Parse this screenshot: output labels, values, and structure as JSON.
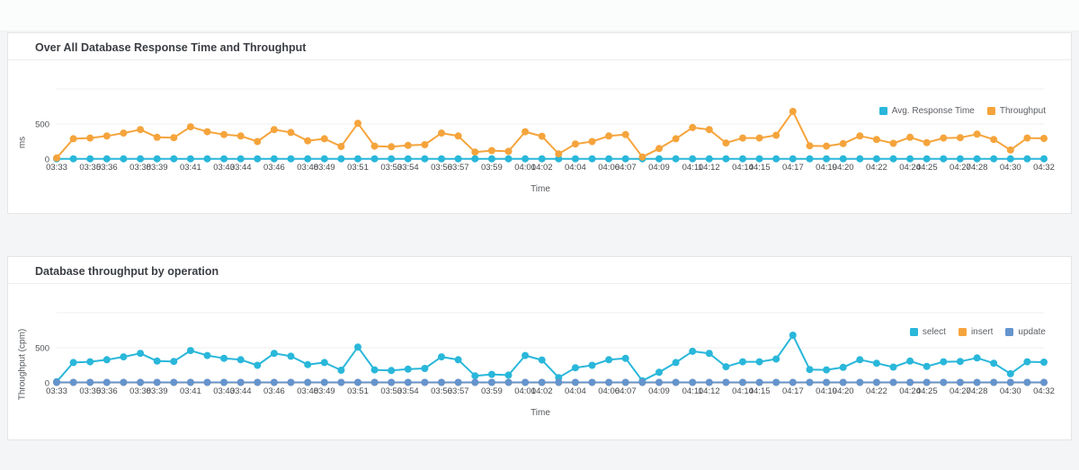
{
  "panels": [
    {
      "title": "Over All Database Response Time and Throughput",
      "y_unit": "ms",
      "x_title": "Time"
    },
    {
      "title": "Database throughput by operation",
      "y_unit": "Throughput (cpm)",
      "x_title": "Time"
    }
  ],
  "colors": {
    "cyan": "#29b7da",
    "orange": "#f5a43c",
    "steel_blue": "#6494ce",
    "panel_bg": "#ffffff",
    "page_bg": "#f4f5f6",
    "grid": "#efefef",
    "axis_text": "#46494d"
  },
  "chart_data": [
    {
      "type": "line",
      "title": "Over All Database Response Time and Throughput",
      "xlabel": "Time",
      "ylabel": "ms",
      "yticks": [
        0,
        500
      ],
      "ylim": [
        0,
        750
      ],
      "grid": "horizontal",
      "legend_position": "top-right",
      "n_points": 60,
      "x_start": "03:33",
      "x_end": "04:32",
      "x_step_minutes": 1,
      "x_tick_labels": [
        "03:33",
        "03:35",
        "03:36",
        "03:38",
        "03:39",
        "03:41",
        "03:43",
        "03:44",
        "03:46",
        "03:48",
        "03:49",
        "03:51",
        "03:53",
        "03:54",
        "03:56",
        "03:57",
        "03:59",
        "04:01",
        "04:02",
        "04:04",
        "04:06",
        "04:07",
        "04:09",
        "04:11",
        "04:12",
        "04:14",
        "04:15",
        "04:17",
        "04:19",
        "04:20",
        "04:22",
        "04:24",
        "04:25",
        "04:27",
        "04:28",
        "04:30",
        "04:32"
      ],
      "x_tick_indices": [
        0,
        2,
        3,
        5,
        6,
        8,
        10,
        11,
        13,
        15,
        16,
        18,
        20,
        21,
        23,
        24,
        26,
        28,
        29,
        31,
        33,
        34,
        36,
        38,
        39,
        41,
        42,
        44,
        46,
        47,
        49,
        51,
        52,
        54,
        55,
        57,
        59
      ],
      "series": [
        {
          "name": "Avg. Response Time",
          "color": "#29b7da",
          "values": [
            4,
            4,
            4,
            4,
            4,
            4,
            4,
            4,
            4,
            4,
            4,
            4,
            4,
            4,
            4,
            4,
            4,
            4,
            4,
            4,
            4,
            4,
            4,
            4,
            4,
            4,
            4,
            4,
            4,
            4,
            4,
            4,
            4,
            4,
            4,
            4,
            4,
            4,
            4,
            4,
            4,
            4,
            4,
            4,
            4,
            4,
            4,
            4,
            4,
            4,
            4,
            4,
            4,
            4,
            4,
            4,
            4,
            4,
            4,
            4
          ]
        },
        {
          "name": "Throughput",
          "color": "#f5a43c",
          "values": [
            15,
            290,
            300,
            330,
            370,
            420,
            310,
            305,
            460,
            390,
            350,
            330,
            250,
            420,
            380,
            260,
            290,
            180,
            510,
            185,
            175,
            195,
            205,
            370,
            330,
            100,
            120,
            110,
            390,
            325,
            75,
            215,
            250,
            330,
            350,
            30,
            150,
            290,
            450,
            420,
            230,
            300,
            300,
            340,
            680,
            190,
            185,
            220,
            330,
            280,
            225,
            310,
            235,
            300,
            305,
            355,
            280,
            130,
            300,
            295
          ]
        }
      ]
    },
    {
      "type": "line",
      "title": "Database throughput by operation",
      "xlabel": "Time",
      "ylabel": "Throughput (cpm)",
      "yticks": [
        0,
        500
      ],
      "ylim": [
        0,
        750
      ],
      "grid": "horizontal",
      "legend_position": "top-right",
      "n_points": 60,
      "x_start": "03:33",
      "x_end": "04:32",
      "x_step_minutes": 1,
      "x_tick_labels": [
        "03:33",
        "03:35",
        "03:36",
        "03:38",
        "03:39",
        "03:41",
        "03:43",
        "03:44",
        "03:46",
        "03:48",
        "03:49",
        "03:51",
        "03:53",
        "03:54",
        "03:56",
        "03:57",
        "03:59",
        "04:01",
        "04:02",
        "04:04",
        "04:06",
        "04:07",
        "04:09",
        "04:11",
        "04:12",
        "04:14",
        "04:15",
        "04:17",
        "04:19",
        "04:20",
        "04:22",
        "04:24",
        "04:25",
        "04:27",
        "04:28",
        "04:30",
        "04:32"
      ],
      "x_tick_indices": [
        0,
        2,
        3,
        5,
        6,
        8,
        10,
        11,
        13,
        15,
        16,
        18,
        20,
        21,
        23,
        24,
        26,
        28,
        29,
        31,
        33,
        34,
        36,
        38,
        39,
        41,
        42,
        44,
        46,
        47,
        49,
        51,
        52,
        54,
        55,
        57,
        59
      ],
      "series": [
        {
          "name": "select",
          "color": "#29b7da",
          "values": [
            15,
            290,
            300,
            330,
            370,
            420,
            310,
            305,
            460,
            390,
            350,
            330,
            250,
            420,
            380,
            260,
            290,
            180,
            510,
            185,
            175,
            195,
            205,
            370,
            330,
            100,
            120,
            110,
            390,
            325,
            75,
            215,
            250,
            330,
            350,
            30,
            150,
            290,
            450,
            420,
            230,
            300,
            300,
            340,
            680,
            190,
            185,
            220,
            330,
            280,
            225,
            310,
            235,
            300,
            305,
            355,
            280,
            130,
            300,
            295
          ]
        },
        {
          "name": "insert",
          "color": "#f5a43c",
          "values": [
            5,
            5,
            5,
            5,
            5,
            5,
            5,
            5,
            5,
            5,
            5,
            5,
            5,
            5,
            5,
            5,
            5,
            5,
            5,
            5,
            5,
            5,
            5,
            5,
            5,
            5,
            5,
            5,
            5,
            5,
            5,
            5,
            5,
            5,
            5,
            5,
            5,
            5,
            5,
            5,
            5,
            5,
            5,
            5,
            5,
            5,
            5,
            5,
            5,
            5,
            5,
            5,
            5,
            5,
            5,
            5,
            5,
            5,
            5,
            5
          ]
        },
        {
          "name": "update",
          "color": "#6494ce",
          "values": [
            7,
            7,
            7,
            7,
            7,
            7,
            7,
            7,
            7,
            7,
            7,
            7,
            7,
            7,
            7,
            7,
            7,
            7,
            7,
            7,
            7,
            7,
            7,
            7,
            7,
            7,
            7,
            7,
            7,
            7,
            7,
            7,
            7,
            7,
            7,
            7,
            7,
            7,
            7,
            7,
            7,
            7,
            7,
            7,
            7,
            7,
            7,
            7,
            7,
            7,
            7,
            7,
            7,
            7,
            7,
            7,
            7,
            7,
            7,
            7
          ]
        }
      ]
    }
  ]
}
